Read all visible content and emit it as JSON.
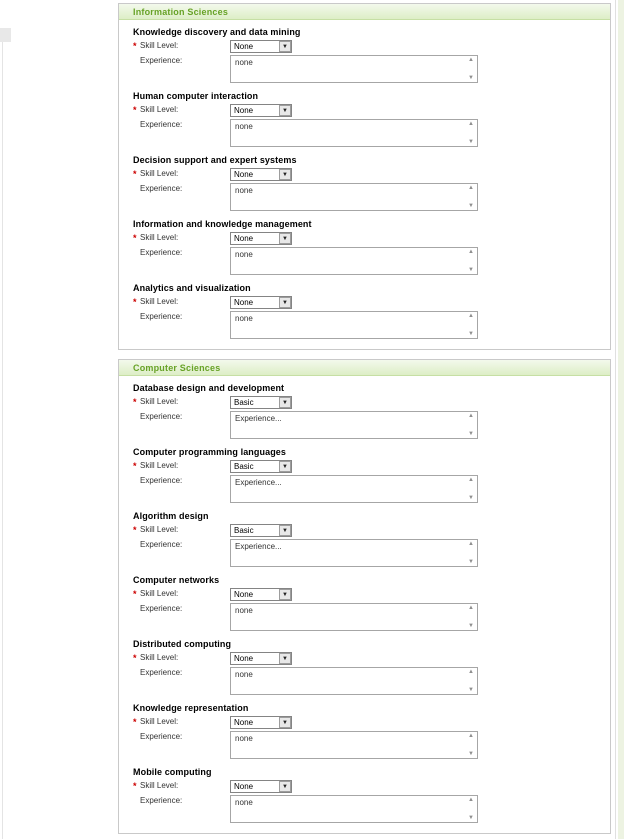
{
  "icons": {
    "dropdown_arrow": "▼",
    "scroll_up": "▲",
    "scroll_down": "▼"
  },
  "colors": {
    "header_text": "#67a226",
    "header_bg_top": "#f3f9ec",
    "header_bg_bottom": "#ddeec6",
    "header_border": "#c6dfa4",
    "panel_border": "#c9c9c9",
    "required_marker": "#cc0000",
    "page_bg": "#ffffff"
  },
  "sections": [
    {
      "title": "Information Sciences",
      "items": [
        {
          "name": "Knowledge discovery and data mining",
          "required": "*",
          "skill_label": "Skill Level:",
          "skill_value": "None",
          "experience_label": "Experience:",
          "experience_value": "none"
        },
        {
          "name": "Human computer interaction",
          "required": "*",
          "skill_label": "Skill Level:",
          "skill_value": "None",
          "experience_label": "Experience:",
          "experience_value": "none"
        },
        {
          "name": "Decision support and expert systems",
          "required": "*",
          "skill_label": "Skill Level:",
          "skill_value": "None",
          "experience_label": "Experience:",
          "experience_value": "none"
        },
        {
          "name": "Information and knowledge management",
          "required": "*",
          "skill_label": "Skill Level:",
          "skill_value": "None",
          "experience_label": "Experience:",
          "experience_value": "none"
        },
        {
          "name": "Analytics and visualization",
          "required": "*",
          "skill_label": "Skill Level:",
          "skill_value": "None",
          "experience_label": "Experience:",
          "experience_value": "none"
        }
      ]
    },
    {
      "title": "Computer Sciences",
      "items": [
        {
          "name": "Database design and development",
          "required": "*",
          "skill_label": "Skill Level:",
          "skill_value": "Basic",
          "experience_label": "Experience:",
          "experience_value": "Experience..."
        },
        {
          "name": "Computer programming languages",
          "required": "*",
          "skill_label": "Skill Level:",
          "skill_value": "Basic",
          "experience_label": "Experience:",
          "experience_value": "Experience..."
        },
        {
          "name": "Algorithm design",
          "required": "*",
          "skill_label": "Skill Level:",
          "skill_value": "Basic",
          "experience_label": "Experience:",
          "experience_value": "Experience..."
        },
        {
          "name": "Computer networks",
          "required": "*",
          "skill_label": "Skill Level:",
          "skill_value": "None",
          "experience_label": "Experience:",
          "experience_value": "none"
        },
        {
          "name": "Distributed computing",
          "required": "*",
          "skill_label": "Skill Level:",
          "skill_value": "None",
          "experience_label": "Experience:",
          "experience_value": "none"
        },
        {
          "name": "Knowledge representation",
          "required": "*",
          "skill_label": "Skill Level:",
          "skill_value": "None",
          "experience_label": "Experience:",
          "experience_value": "none"
        },
        {
          "name": "Mobile computing",
          "required": "*",
          "skill_label": "Skill Level:",
          "skill_value": "None",
          "experience_label": "Experience:",
          "experience_value": "none"
        }
      ]
    }
  ]
}
